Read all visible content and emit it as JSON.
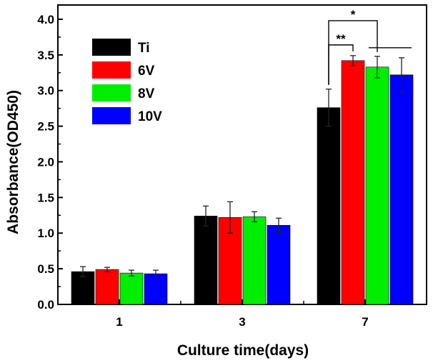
{
  "chart_data": {
    "type": "bar",
    "title": "",
    "xlabel": "Culture time(days)",
    "ylabel": "Absorbance(OD450)",
    "ylim": [
      0,
      4.2
    ],
    "yticks": [
      "0.0",
      "0.5",
      "1.0",
      "1.5",
      "2.0",
      "2.5",
      "3.0",
      "3.5",
      "4.0"
    ],
    "categories": [
      "1",
      "3",
      "7"
    ],
    "legend_position": "top-left",
    "series": [
      {
        "name": "Ti",
        "color": "#000000",
        "values": [
          0.46,
          1.24,
          2.76
        ],
        "errors": [
          0.07,
          0.14,
          0.26
        ]
      },
      {
        "name": "6V",
        "color": "#ff0000",
        "values": [
          0.49,
          1.22,
          3.42
        ],
        "errors": [
          0.03,
          0.22,
          0.07
        ]
      },
      {
        "name": "8V",
        "color": "#00ee00",
        "values": [
          0.44,
          1.23,
          3.33
        ],
        "errors": [
          0.04,
          0.07,
          0.15
        ]
      },
      {
        "name": "10V",
        "color": "#0000ff",
        "values": [
          0.43,
          1.11,
          3.22
        ],
        "errors": [
          0.05,
          0.1,
          0.24
        ]
      }
    ],
    "annotations": [
      {
        "label": "*",
        "category": "7",
        "from_series": "Ti",
        "to_series": "8V"
      },
      {
        "label": "**",
        "category": "7",
        "from_series": "Ti",
        "to_series": "6V"
      }
    ]
  }
}
